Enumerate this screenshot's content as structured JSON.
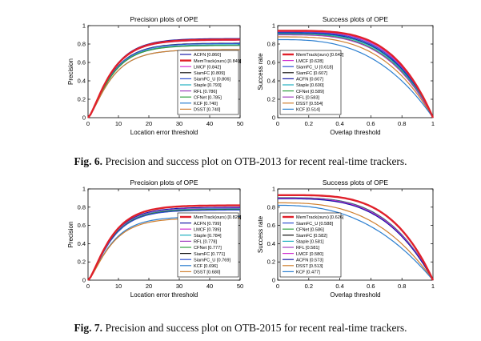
{
  "figures": [
    {
      "caption_label": "Fig. 6.",
      "caption_text": "Precision and success plot on OTB-2013 for recent real-time trackers."
    },
    {
      "caption_label": "Fig. 7.",
      "caption_text": "Precision and success plot on OTB-2015 for recent real-time trackers."
    }
  ],
  "chart_data": [
    {
      "type": "line",
      "kind": "precision",
      "title": "Precision plots of OPE",
      "xlabel": "Location error threshold",
      "ylabel": "Precision",
      "xlim": [
        0,
        50
      ],
      "ylim": [
        0,
        1
      ],
      "xticks": [
        "0",
        "10",
        "20",
        "30",
        "40",
        "50"
      ],
      "yticks": [
        "0",
        "0.2",
        "0.4",
        "0.6",
        "0.8",
        "1"
      ],
      "legend_position": "lower-right",
      "series": [
        {
          "label": "ACFN [0.860]",
          "value": 0.86,
          "color": "#1a1aa8",
          "width": 1.2
        },
        {
          "label": "MemTrack(ours) [0.849]",
          "value": 0.849,
          "color": "#e0202a",
          "width": 2.4
        },
        {
          "label": "LMCF [0.842]",
          "value": 0.842,
          "color": "#d030d0",
          "width": 1.2
        },
        {
          "label": "SiamFC [0.809]",
          "value": 0.809,
          "color": "#111111",
          "width": 1.2
        },
        {
          "label": "SiamFC_U [0.806]",
          "value": 0.806,
          "color": "#3050d0",
          "width": 1.2
        },
        {
          "label": "Staple [0.793]",
          "value": 0.793,
          "color": "#20b0c0",
          "width": 1.2
        },
        {
          "label": "RFL [0.786]",
          "value": 0.786,
          "color": "#a040c0",
          "width": 1.2
        },
        {
          "label": "CFNet [0.785]",
          "value": 0.785,
          "color": "#30a040",
          "width": 1.2
        },
        {
          "label": "KCF [0.740]",
          "value": 0.74,
          "color": "#2c7fd0",
          "width": 1.2
        },
        {
          "label": "DSST [0.740]",
          "value": 0.74,
          "color": "#d08030",
          "width": 1.2
        }
      ]
    },
    {
      "type": "line",
      "kind": "success",
      "title": "Success plots of OPE",
      "xlabel": "Overlap threshold",
      "ylabel": "Success rate",
      "xlim": [
        0,
        1
      ],
      "ylim": [
        0,
        1
      ],
      "xticks": [
        "0",
        "0.2",
        "0.4",
        "0.6",
        "0.8",
        "1"
      ],
      "yticks": [
        "0",
        "0.2",
        "0.4",
        "0.6",
        "0.8",
        "1"
      ],
      "legend_position": "lower-left",
      "series": [
        {
          "label": "MemTrack(ours) [0.642]",
          "value": 0.642,
          "color": "#e0202a",
          "width": 2.4
        },
        {
          "label": "LMCF [0.628]",
          "value": 0.628,
          "color": "#d030d0",
          "width": 1.2
        },
        {
          "label": "SiamFC_U [0.618]",
          "value": 0.618,
          "color": "#3050d0",
          "width": 1.2
        },
        {
          "label": "SiamFC [0.607]",
          "value": 0.607,
          "color": "#111111",
          "width": 1.2
        },
        {
          "label": "ACFN [0.607]",
          "value": 0.607,
          "color": "#1a1aa8",
          "width": 1.2
        },
        {
          "label": "Staple [0.600]",
          "value": 0.6,
          "color": "#20b0c0",
          "width": 1.2
        },
        {
          "label": "CFNet [0.589]",
          "value": 0.589,
          "color": "#30a040",
          "width": 1.2
        },
        {
          "label": "RFL [0.583]",
          "value": 0.583,
          "color": "#a040c0",
          "width": 1.2
        },
        {
          "label": "DSST [0.554]",
          "value": 0.554,
          "color": "#d08030",
          "width": 1.2
        },
        {
          "label": "KCF [0.514]",
          "value": 0.514,
          "color": "#2c7fd0",
          "width": 1.2
        }
      ]
    },
    {
      "type": "line",
      "kind": "precision",
      "title": "Precision plots of OPE",
      "xlabel": "Location error threshold",
      "ylabel": "Precision",
      "xlim": [
        0,
        50
      ],
      "ylim": [
        0,
        1
      ],
      "xticks": [
        "0",
        "10",
        "20",
        "30",
        "40",
        "50"
      ],
      "yticks": [
        "0",
        "0.2",
        "0.4",
        "0.6",
        "0.8",
        "1"
      ],
      "legend_position": "lower-right",
      "series": [
        {
          "label": "MemTrack(ours) [0.820]",
          "value": 0.82,
          "color": "#e0202a",
          "width": 2.4
        },
        {
          "label": "ACFN [0.799]",
          "value": 0.799,
          "color": "#1a1aa8",
          "width": 1.2
        },
        {
          "label": "LMCF [0.789]",
          "value": 0.789,
          "color": "#d030d0",
          "width": 1.2
        },
        {
          "label": "Staple [0.784]",
          "value": 0.784,
          "color": "#20b0c0",
          "width": 1.2
        },
        {
          "label": "RFL [0.778]",
          "value": 0.778,
          "color": "#a040c0",
          "width": 1.2
        },
        {
          "label": "CFNet [0.777]",
          "value": 0.777,
          "color": "#30a040",
          "width": 1.2
        },
        {
          "label": "SiamFC [0.771]",
          "value": 0.771,
          "color": "#111111",
          "width": 1.2
        },
        {
          "label": "SiamFC_U [0.769]",
          "value": 0.769,
          "color": "#3050d0",
          "width": 1.2
        },
        {
          "label": "KCF [0.696]",
          "value": 0.696,
          "color": "#2c7fd0",
          "width": 1.2
        },
        {
          "label": "DSST [0.680]",
          "value": 0.68,
          "color": "#d08030",
          "width": 1.2
        }
      ]
    },
    {
      "type": "line",
      "kind": "success",
      "title": "Success plots of OPE",
      "xlabel": "Overlap threshold",
      "ylabel": "Success rate",
      "xlim": [
        0,
        1
      ],
      "ylim": [
        0,
        1
      ],
      "xticks": [
        "0",
        "0.2",
        "0.4",
        "0.6",
        "0.8",
        "1"
      ],
      "yticks": [
        "0",
        "0.2",
        "0.4",
        "0.6",
        "0.8",
        "1"
      ],
      "legend_position": "lower-left",
      "series": [
        {
          "label": "MemTrack(ours) [0.626]",
          "value": 0.626,
          "color": "#e0202a",
          "width": 2.4
        },
        {
          "label": "SiamFC_U [0.588]",
          "value": 0.588,
          "color": "#3050d0",
          "width": 1.2
        },
        {
          "label": "CFNet [0.586]",
          "value": 0.586,
          "color": "#30a040",
          "width": 1.2
        },
        {
          "label": "SiamFC [0.582]",
          "value": 0.582,
          "color": "#111111",
          "width": 1.2
        },
        {
          "label": "Staple [0.581]",
          "value": 0.581,
          "color": "#20b0c0",
          "width": 1.2
        },
        {
          "label": "RFL [0.581]",
          "value": 0.581,
          "color": "#a040c0",
          "width": 1.2
        },
        {
          "label": "LMCF [0.580]",
          "value": 0.58,
          "color": "#d030d0",
          "width": 1.2
        },
        {
          "label": "ACFN [0.573]",
          "value": 0.573,
          "color": "#1a1aa8",
          "width": 1.2
        },
        {
          "label": "DSST [0.513]",
          "value": 0.513,
          "color": "#d08030",
          "width": 1.2
        },
        {
          "label": "KCF [0.477]",
          "value": 0.477,
          "color": "#2c7fd0",
          "width": 1.2
        }
      ]
    }
  ]
}
